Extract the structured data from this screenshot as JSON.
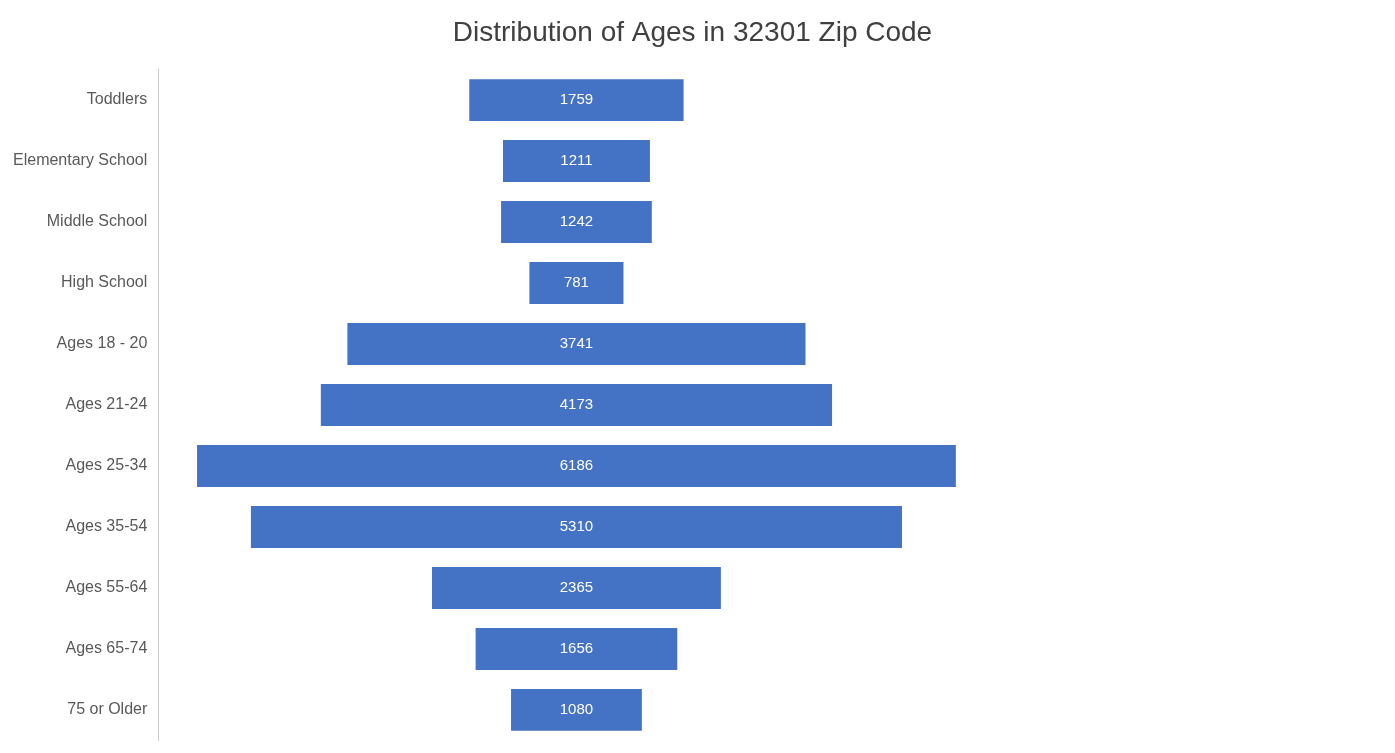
{
  "chart_data": {
    "type": "bar",
    "orientation": "horizontal",
    "title": "Distribution of Ages in 32301 Zip Code",
    "categories": [
      "Toddlers",
      "Elementary School",
      "Middle School",
      "High School",
      "Ages 18 - 20",
      "Ages 21-24",
      "Ages 25-34",
      "Ages 35-54",
      "Ages 55-64",
      "Ages 65-74",
      "75 or Older"
    ],
    "values": [
      1759,
      1211,
      1242,
      781,
      3741,
      4173,
      6186,
      5310,
      2365,
      1656,
      1080
    ],
    "color": "#4472C4",
    "xlim": [
      -3400,
      6493
    ],
    "grid": false,
    "data_labels": true,
    "tick_labels": "y"
  }
}
